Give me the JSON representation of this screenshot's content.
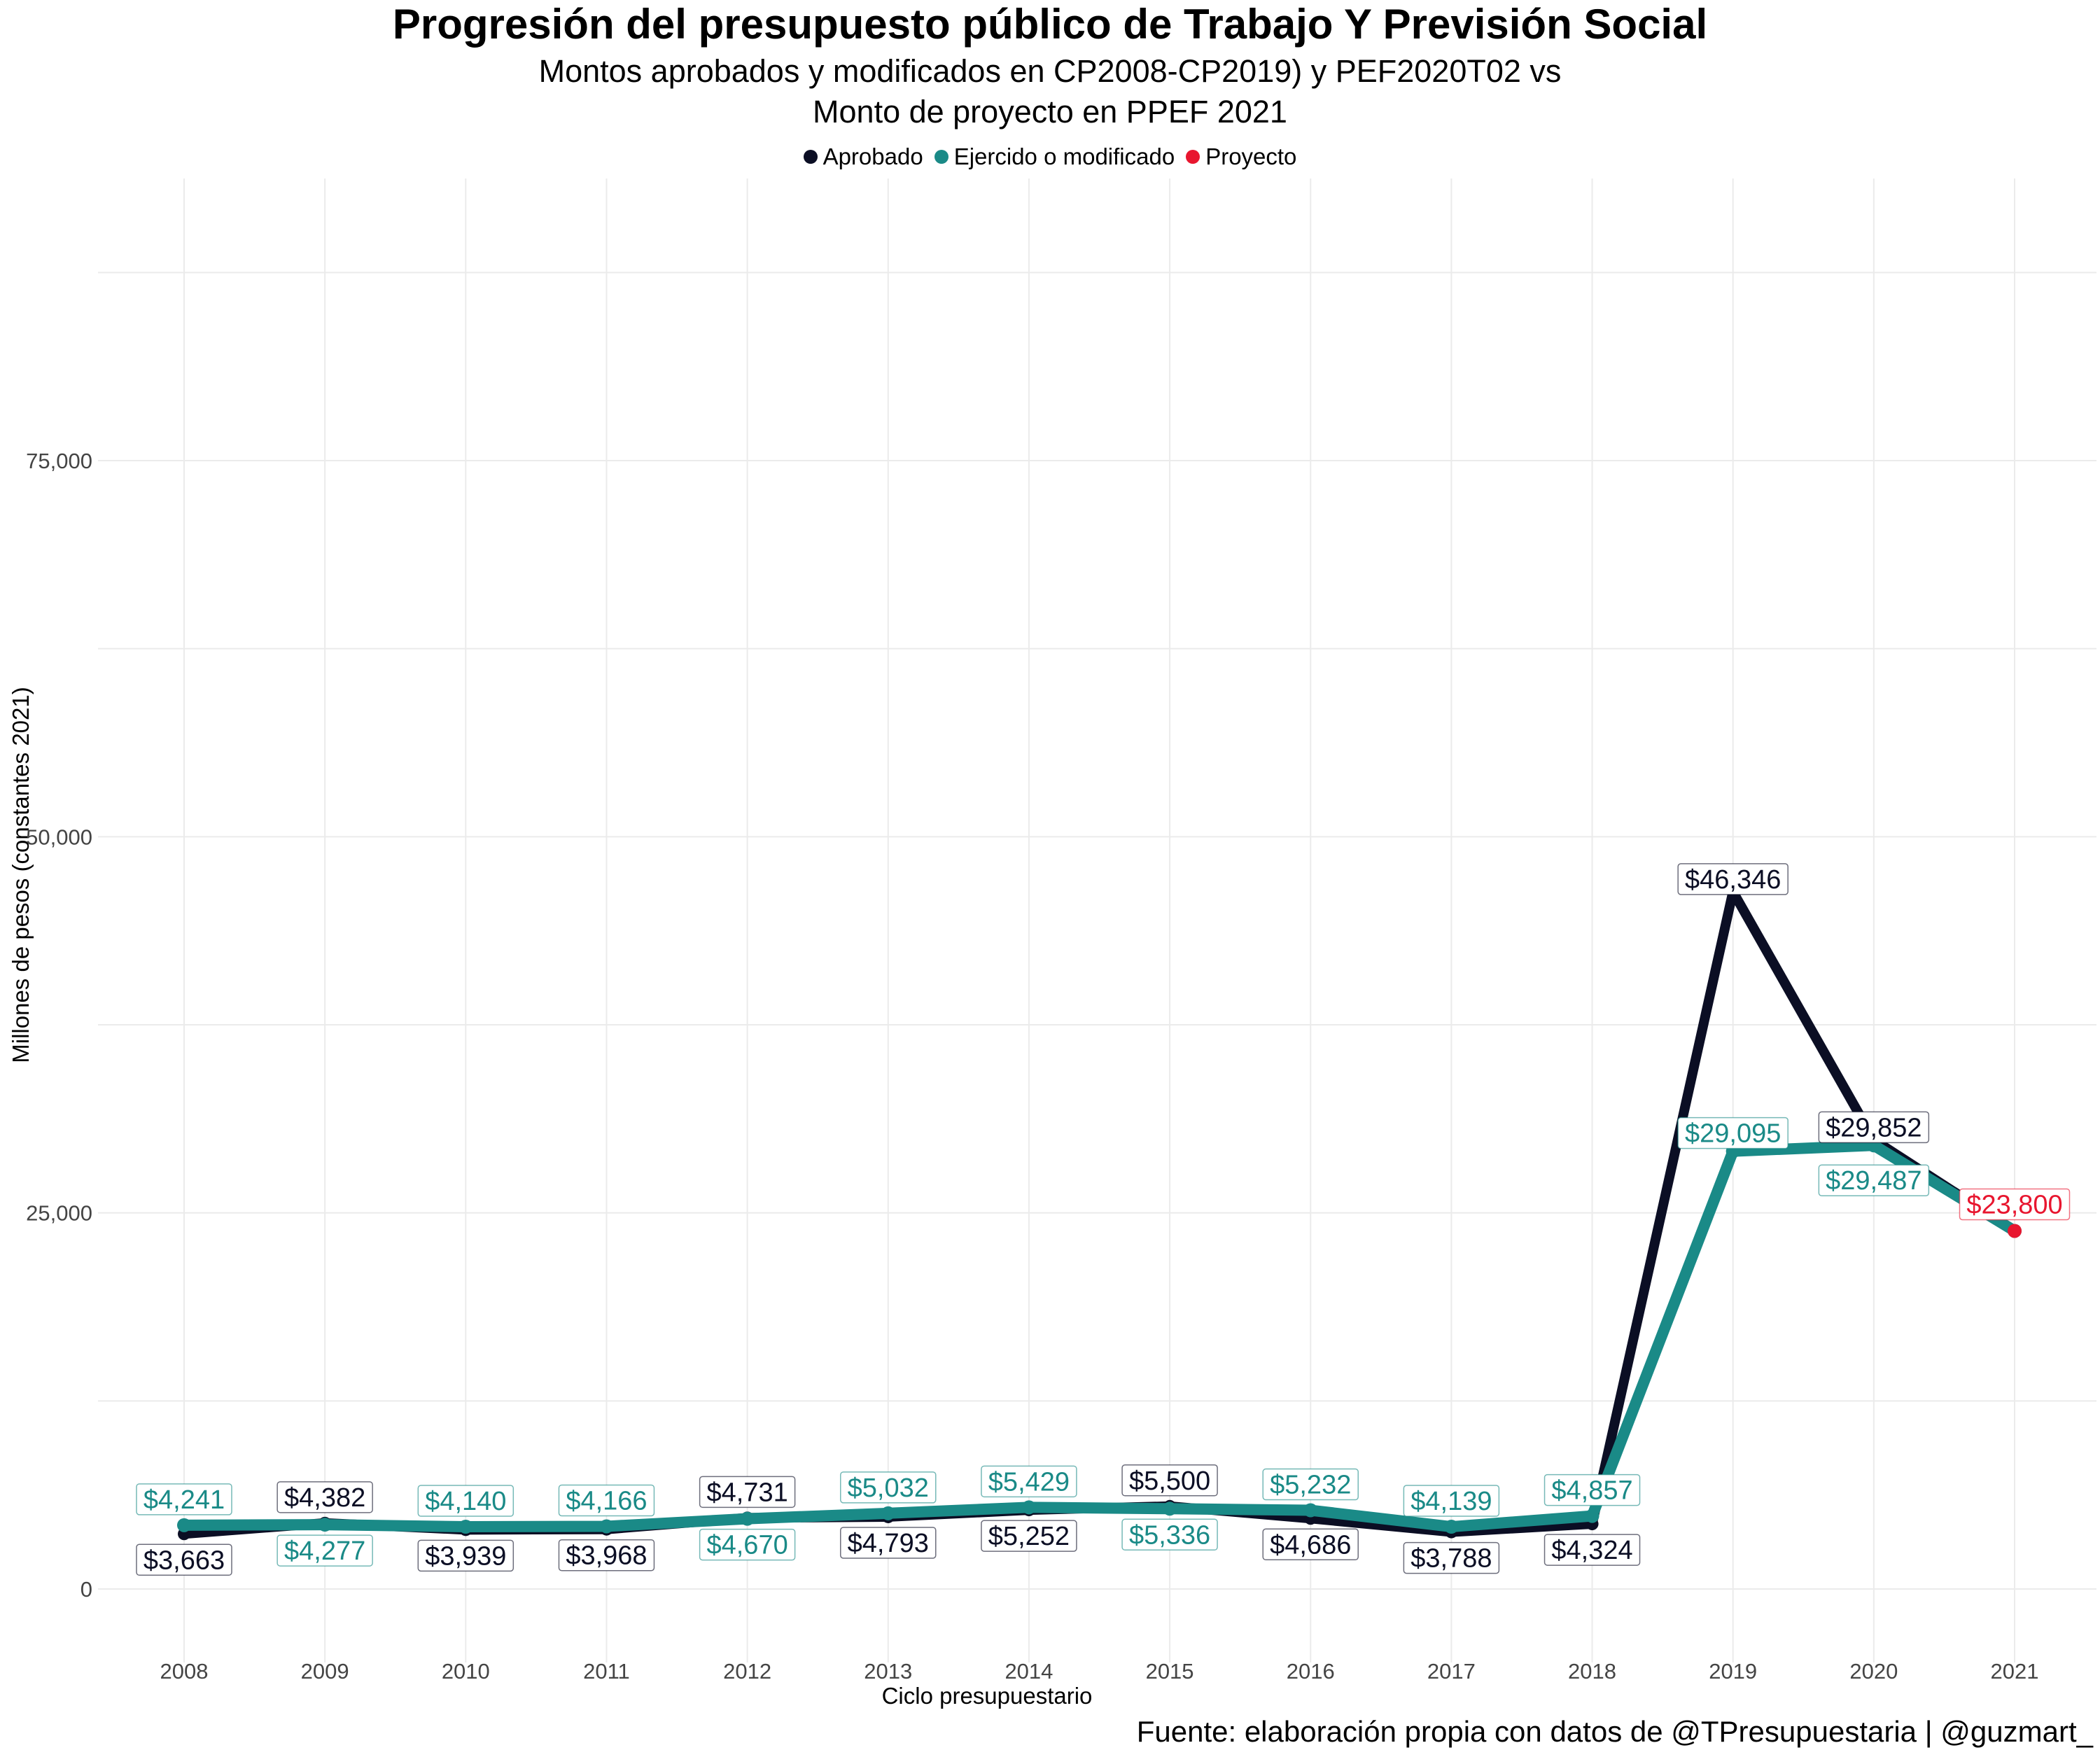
{
  "chart_data": {
    "type": "line",
    "title": "Progresión del presupuesto público de Trabajo Y Previsión Social",
    "subtitle_line1": "Montos aprobados y modificados en CP2008-CP2019) y PEF2020T02 vs",
    "subtitle_line2": "Monto de proyecto en PPEF 2021",
    "xlabel": "Ciclo presupuestario",
    "ylabel": "Millones de pesos (constantes 2021)",
    "caption": "Fuente: elaboración propia con datos de @TPresupuestaria | @guzmart_",
    "x": [
      2008,
      2009,
      2010,
      2011,
      2012,
      2013,
      2014,
      2015,
      2016,
      2017,
      2018,
      2019,
      2020,
      2021
    ],
    "xticks": [
      "2008",
      "2009",
      "2010",
      "2011",
      "2012",
      "2013",
      "2014",
      "2015",
      "2016",
      "2017",
      "2018",
      "2019",
      "2020",
      "2021"
    ],
    "ylim": [
      -5000,
      93000
    ],
    "yticks": [
      0,
      25000,
      50000,
      75000
    ],
    "ytick_labels": [
      "0",
      "25,000",
      "50,000",
      "75,000"
    ],
    "grid": true,
    "legend_position": "top",
    "series": [
      {
        "name": "Aprobado",
        "color": "#0b0e24",
        "x": [
          2008,
          2009,
          2010,
          2011,
          2012,
          2013,
          2014,
          2015,
          2016,
          2017,
          2018,
          2019,
          2020,
          2021
        ],
        "values": [
          3663,
          4382,
          3939,
          3968,
          4731,
          4793,
          5252,
          5500,
          4686,
          3788,
          4324,
          46346,
          29852,
          23800
        ],
        "labels": [
          "$3,663",
          "$4,382",
          "$3,939",
          "$3,968",
          "$4,731",
          "$4,793",
          "$5,252",
          "$5,500",
          "$4,686",
          "$3,788",
          "$4,324",
          "$46,346",
          "$29,852",
          null
        ]
      },
      {
        "name": "Ejercido o modificado",
        "color": "#1a8a87",
        "x": [
          2008,
          2009,
          2010,
          2011,
          2012,
          2013,
          2014,
          2015,
          2016,
          2017,
          2018,
          2019,
          2020,
          2021
        ],
        "values": [
          4241,
          4277,
          4140,
          4166,
          4670,
          5032,
          5429,
          5336,
          5232,
          4139,
          4857,
          29095,
          29487,
          23800
        ],
        "labels": [
          "$4,241",
          "$4,277",
          "$4,140",
          "$4,166",
          "$4,670",
          "$5,032",
          "$5,429",
          "$5,336",
          "$5,232",
          "$4,139",
          "$4,857",
          "$29,095",
          "$29,487",
          null
        ]
      },
      {
        "name": "Proyecto",
        "color": "#e8162f",
        "x": [
          2021
        ],
        "values": [
          23800
        ],
        "labels": [
          "$23,800"
        ]
      }
    ]
  }
}
